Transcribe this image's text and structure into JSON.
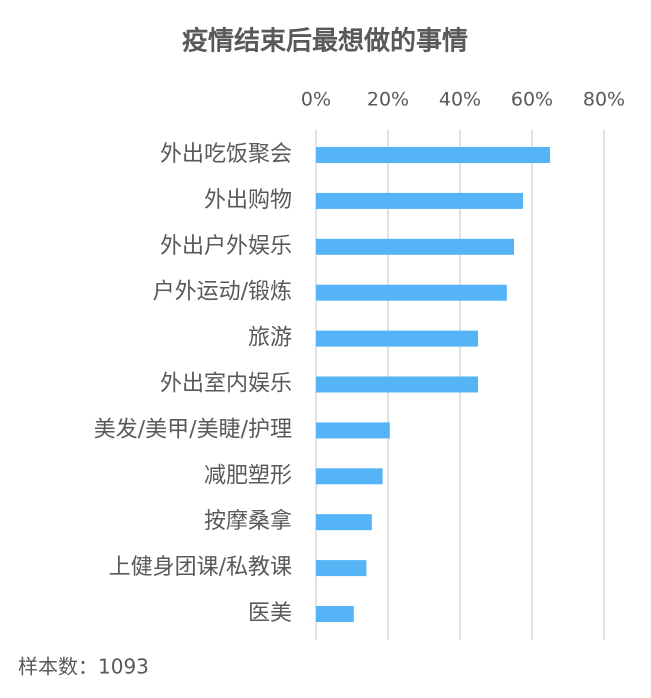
{
  "chart_data": {
    "type": "hbar",
    "title": "疫情结束后最想做的事情",
    "categories": [
      "外出吃饭聚会",
      "外出购物",
      "外出户外娱乐",
      "户外运动/锻炼",
      "旅游",
      "外出室内娱乐",
      "美发/美甲/美睫/护理",
      "减肥塑形",
      "按摩桑拿",
      "上健身团课/私教课",
      "医美"
    ],
    "values": [
      65,
      57.5,
      55,
      53,
      45,
      45,
      20.5,
      18.5,
      15.5,
      14,
      10.5
    ],
    "color": "#55b4f6",
    "xlim": [
      0,
      80
    ],
    "xticks": [
      {
        "value": 0,
        "label": "0%"
      },
      {
        "value": 20,
        "label": "20%"
      },
      {
        "value": 40,
        "label": "40%"
      },
      {
        "value": 60,
        "label": "60%"
      },
      {
        "value": 80,
        "label": "80%"
      }
    ],
    "grid": true,
    "note": "样本数：1093"
  }
}
